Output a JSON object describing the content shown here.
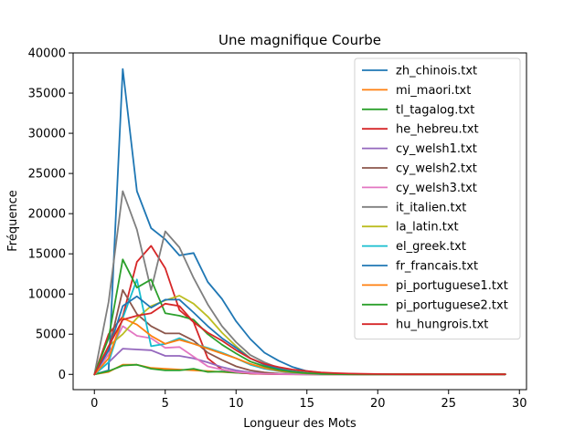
{
  "chart_data": {
    "type": "line",
    "title": "Une magnifique Courbe",
    "xlabel": "Longueur des Mots",
    "ylabel": "Fréquence",
    "xlim": [
      -1.5,
      30.5
    ],
    "ylim": [
      -1900,
      40000
    ],
    "x_ticks": [
      0,
      5,
      10,
      15,
      20,
      25,
      30
    ],
    "x_tick_labels": [
      "0",
      "5",
      "10",
      "15",
      "20",
      "25",
      "30"
    ],
    "y_ticks": [
      0,
      5000,
      10000,
      15000,
      20000,
      25000,
      30000,
      35000,
      40000
    ],
    "y_tick_labels": [
      "0",
      "5000",
      "10000",
      "15000",
      "20000",
      "25000",
      "30000",
      "35000",
      "40000"
    ],
    "legend_position": "top-right",
    "grid": false,
    "x": [
      0,
      1,
      2,
      3,
      4,
      5,
      6,
      7,
      8,
      9,
      10,
      11,
      12,
      13,
      14,
      15,
      16,
      17,
      18,
      19,
      20,
      21,
      22,
      23,
      24,
      25,
      26,
      27,
      28,
      29
    ],
    "series": [
      {
        "name": "zh_chinois.txt",
        "color": "#1f77b4",
        "values": [
          0,
          500,
          38000,
          22800,
          18200,
          16800,
          14800,
          15100,
          11500,
          9400,
          6600,
          4400,
          2700,
          1700,
          900,
          400,
          200,
          100,
          60,
          30,
          20,
          10,
          5,
          5,
          5,
          5,
          5,
          5,
          5,
          5
        ]
      },
      {
        "name": "mi_maori.txt",
        "color": "#ff7f0e",
        "values": [
          0,
          300,
          1200,
          1200,
          800,
          700,
          600,
          500,
          400,
          300,
          200,
          120,
          80,
          50,
          30,
          20,
          10,
          5,
          5,
          5,
          5,
          5,
          5,
          5,
          5,
          5,
          5,
          5,
          5,
          5
        ]
      },
      {
        "name": "tl_tagalog.txt",
        "color": "#2ca02c",
        "values": [
          0,
          400,
          1100,
          1200,
          700,
          500,
          500,
          700,
          300,
          350,
          200,
          100,
          60,
          40,
          20,
          10,
          5,
          5,
          5,
          5,
          5,
          5,
          5,
          5,
          5,
          5,
          5,
          5,
          5,
          5
        ]
      },
      {
        "name": "he_hebreu.txt",
        "color": "#d62728",
        "values": [
          0,
          5000,
          7200,
          14000,
          16000,
          13200,
          8000,
          6500,
          2000,
          600,
          300,
          100,
          50,
          20,
          10,
          5,
          5,
          5,
          5,
          5,
          5,
          5,
          5,
          5,
          5,
          5,
          5,
          5,
          5,
          5
        ]
      },
      {
        "name": "cy_welsh1.txt",
        "color": "#9467bd",
        "values": [
          0,
          1500,
          3200,
          3100,
          3000,
          2300,
          2300,
          2000,
          1500,
          900,
          500,
          250,
          120,
          50,
          20,
          10,
          5,
          5,
          5,
          5,
          5,
          5,
          5,
          5,
          5,
          5,
          5,
          5,
          5,
          5
        ]
      },
      {
        "name": "cy_welsh2.txt",
        "color": "#8c564b",
        "values": [
          0,
          3000,
          10500,
          7500,
          6000,
          5100,
          5100,
          4200,
          2700,
          1800,
          1000,
          500,
          250,
          100,
          50,
          20,
          10,
          5,
          5,
          5,
          5,
          5,
          5,
          5,
          5,
          5,
          5,
          5,
          5,
          5
        ]
      },
      {
        "name": "cy_welsh3.txt",
        "color": "#e377c2",
        "values": [
          0,
          2500,
          6000,
          4800,
          4500,
          3300,
          3400,
          2200,
          1000,
          600,
          300,
          150,
          80,
          40,
          20,
          10,
          5,
          5,
          5,
          5,
          5,
          5,
          5,
          5,
          5,
          5,
          5,
          5,
          5,
          5
        ]
      },
      {
        "name": "it_italien.txt",
        "color": "#7f7f7f",
        "values": [
          0,
          9000,
          22800,
          18000,
          10500,
          17800,
          15800,
          12000,
          8700,
          6000,
          4000,
          2400,
          1500,
          800,
          400,
          200,
          100,
          50,
          20,
          10,
          5,
          5,
          5,
          5,
          5,
          5,
          5,
          5,
          5,
          5
        ]
      },
      {
        "name": "la_latin.txt",
        "color": "#bcbd22",
        "values": [
          0,
          3500,
          5000,
          7000,
          8500,
          9200,
          9800,
          8800,
          7200,
          5200,
          3500,
          2000,
          1200,
          700,
          350,
          150,
          70,
          30,
          15,
          5,
          5,
          5,
          5,
          5,
          5,
          5,
          5,
          5,
          5,
          5
        ]
      },
      {
        "name": "el_greek.txt",
        "color": "#17becf",
        "values": [
          0,
          1500,
          7000,
          11800,
          3500,
          3800,
          4500,
          3800,
          3300,
          2700,
          2000,
          1200,
          700,
          400,
          200,
          100,
          50,
          20,
          10,
          5,
          5,
          5,
          5,
          5,
          5,
          5,
          5,
          5,
          5,
          5
        ]
      },
      {
        "name": "fr_francais.txt",
        "color": "#1f77b4",
        "values": [
          0,
          3000,
          8500,
          9700,
          8300,
          9300,
          9300,
          7700,
          6000,
          4500,
          3300,
          2000,
          1200,
          700,
          350,
          150,
          70,
          30,
          15,
          5,
          5,
          5,
          5,
          5,
          5,
          5,
          5,
          5,
          5,
          5
        ]
      },
      {
        "name": "pi_portuguese1.txt",
        "color": "#ff7f0e",
        "values": [
          0,
          2000,
          7000,
          6200,
          4800,
          3800,
          4300,
          3800,
          3200,
          2600,
          2000,
          1300,
          800,
          450,
          250,
          120,
          60,
          30,
          10,
          5,
          5,
          5,
          5,
          5,
          5,
          5,
          5,
          5,
          5,
          5
        ]
      },
      {
        "name": "pi_portuguese2.txt",
        "color": "#2ca02c",
        "values": [
          0,
          4500,
          14300,
          10800,
          11800,
          7600,
          7300,
          6800,
          5000,
          3700,
          2600,
          1600,
          1000,
          550,
          300,
          140,
          60,
          25,
          10,
          5,
          5,
          5,
          5,
          5,
          5,
          5,
          5,
          5,
          5,
          5
        ]
      },
      {
        "name": "hu_hungrois.txt",
        "color": "#d62728",
        "values": [
          0,
          3500,
          6800,
          7300,
          7600,
          8800,
          8500,
          6500,
          5200,
          4200,
          3000,
          2000,
          1300,
          900,
          600,
          400,
          250,
          150,
          100,
          60,
          40,
          20,
          10,
          5,
          5,
          5,
          5,
          5,
          5,
          5
        ]
      }
    ]
  }
}
